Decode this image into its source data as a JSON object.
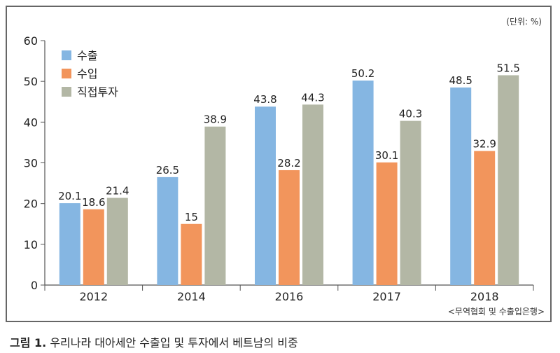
{
  "caption": {
    "label": "그림 1.",
    "text": "우리나라 대아세안 수출입 및 투자에서 베트남의 비중"
  },
  "unit_note": "(단위: %)",
  "source_note": "<무역협회 및 수출입은행>",
  "colors": {
    "수출": "#85b6e2",
    "수입": "#f2955c",
    "직접투자": "#b3b7a5",
    "axis": "#555555",
    "frame": "#666666"
  },
  "chart_data": {
    "type": "bar",
    "title": "",
    "xlabel": "",
    "ylabel": "",
    "categories": [
      "2012",
      "2014",
      "2016",
      "2017",
      "2018"
    ],
    "series": [
      {
        "name": "수출",
        "values": [
          20.1,
          26.5,
          43.8,
          50.2,
          48.5
        ]
      },
      {
        "name": "수입",
        "values": [
          18.6,
          15,
          28.2,
          30.1,
          32.9
        ]
      },
      {
        "name": "직접투자",
        "values": [
          21.4,
          38.9,
          44.3,
          40.3,
          51.5
        ]
      }
    ],
    "ylim": [
      0,
      60
    ],
    "yticks": [
      "0",
      "10",
      "20",
      "30",
      "40",
      "50",
      "60"
    ],
    "legend_position": "top-left",
    "grid": false,
    "data_labels": true
  }
}
